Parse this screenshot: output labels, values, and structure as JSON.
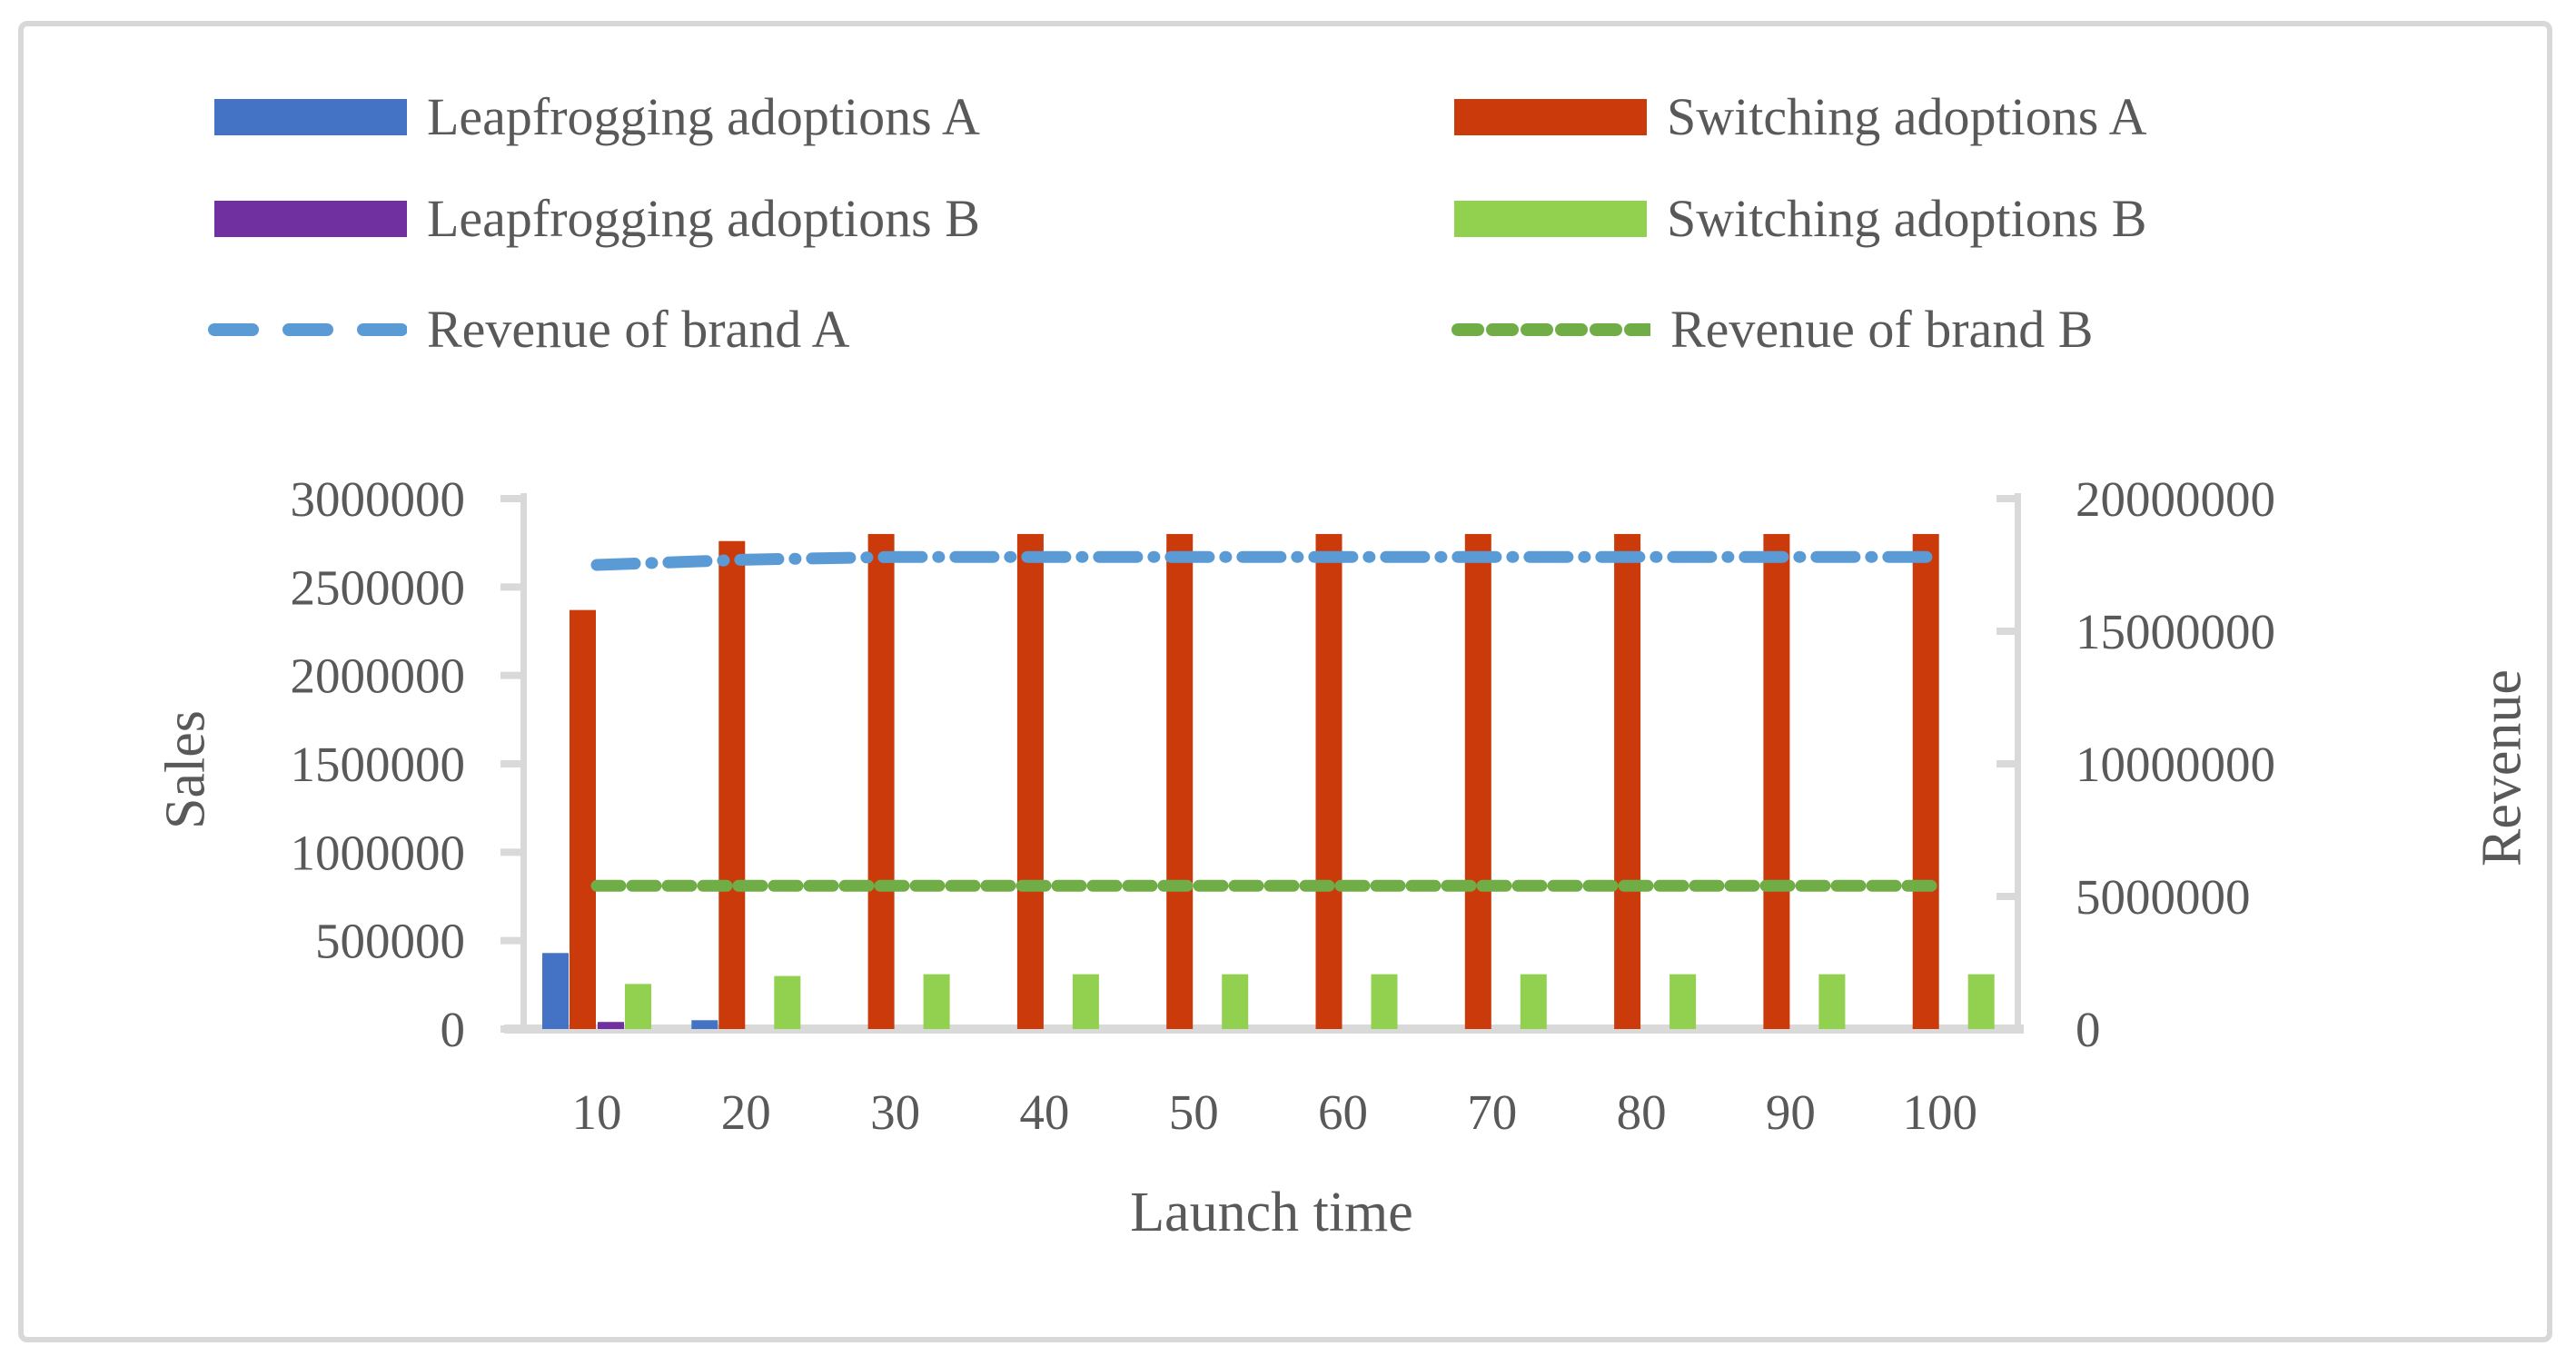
{
  "frame": {
    "border_color": "#d8d8d8"
  },
  "text_color": "#595959",
  "axis_color": "#d9d9d9",
  "legend": {
    "items": [
      {
        "label": "Leapfrogging adoptions A",
        "type": "bar",
        "color": "#4472c4",
        "column": "left",
        "row": 0
      },
      {
        "label": "Switching adoptions A",
        "type": "bar",
        "color": "#cb3a0b",
        "column": "right",
        "row": 0
      },
      {
        "label": "Leapfrogging adoptions B",
        "type": "bar",
        "color": "#7030a0",
        "column": "left",
        "row": 1
      },
      {
        "label": "Switching adoptions B",
        "type": "bar",
        "color": "#92d050",
        "column": "right",
        "row": 1
      },
      {
        "label": "Revenue of brand A",
        "type": "line",
        "color": "#5b9bd5",
        "dash": "dashdot",
        "column": "left",
        "row": 2
      },
      {
        "label": "Revenue of brand B",
        "type": "line",
        "color": "#70ad47",
        "dash": "dash",
        "column": "right",
        "row": 2
      }
    ]
  },
  "chart_data": {
    "type": "bar",
    "subtype": "grouped bars with dual-axis dashed lines",
    "categories": [
      "10",
      "20",
      "30",
      "40",
      "50",
      "60",
      "70",
      "80",
      "90",
      "100"
    ],
    "xlabel": "Launch time",
    "left_axis": {
      "label": "Sales",
      "range": [
        0,
        3000000
      ],
      "tick_labels": [
        "3000000",
        "2500000",
        "2000000",
        "1500000",
        "1000000",
        "500000",
        "0"
      ]
    },
    "right_axis": {
      "label": "Revenue",
      "range": [
        0,
        20000000
      ],
      "tick_labels": [
        "20000000",
        "15000000",
        "10000000",
        "5000000",
        "0"
      ]
    },
    "grid": "off",
    "legend_position": "top",
    "series": [
      {
        "name": "Leapfrogging adoptions A",
        "type": "bar",
        "axis": "left",
        "color": "#4472c4",
        "values": [
          430000,
          50000,
          0,
          0,
          0,
          0,
          0,
          0,
          0,
          0
        ]
      },
      {
        "name": "Switching adoptions A",
        "type": "bar",
        "axis": "left",
        "color": "#cb3a0b",
        "values": [
          2370000,
          2760000,
          2800000,
          2800000,
          2800000,
          2800000,
          2800000,
          2800000,
          2800000,
          2800000
        ]
      },
      {
        "name": "Leapfrogging adoptions B",
        "type": "bar",
        "axis": "left",
        "color": "#7030a0",
        "values": [
          40000,
          0,
          0,
          0,
          0,
          0,
          0,
          0,
          0,
          0
        ]
      },
      {
        "name": "Switching adoptions B",
        "type": "bar",
        "axis": "left",
        "color": "#92d050",
        "values": [
          255000,
          300000,
          310000,
          310000,
          310000,
          310000,
          310000,
          310000,
          310000,
          310000
        ]
      },
      {
        "name": "Revenue of brand A",
        "type": "line",
        "axis": "right",
        "color": "#5b9bd5",
        "dash": "dashdot",
        "values": [
          17500000,
          17700000,
          17800000,
          17800000,
          17800000,
          17800000,
          17800000,
          17800000,
          17800000,
          17800000
        ]
      },
      {
        "name": "Revenue of brand B",
        "type": "line",
        "axis": "right",
        "color": "#70ad47",
        "dash": "dash",
        "values": [
          5400000,
          5400000,
          5400000,
          5400000,
          5400000,
          5400000,
          5400000,
          5400000,
          5400000,
          5400000
        ]
      }
    ]
  }
}
